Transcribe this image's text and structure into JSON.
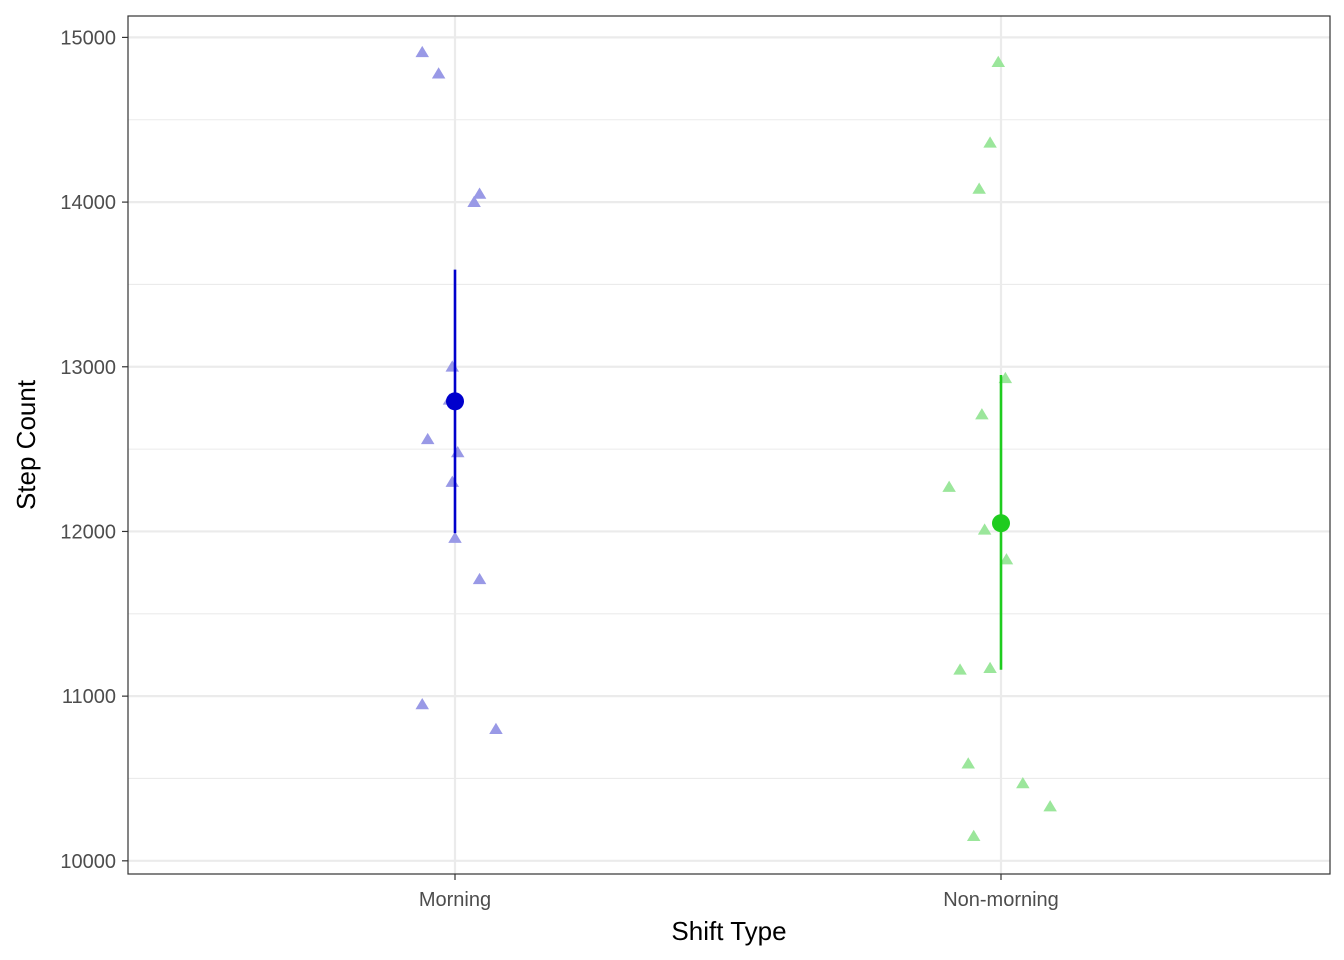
{
  "chart_data": {
    "type": "scatter",
    "xlabel": "Shift Type",
    "ylabel": "Step Count",
    "categories": [
      "Morning",
      "Non-morning"
    ],
    "ylim": [
      9920,
      15130
    ],
    "yticks": [
      10000,
      11000,
      12000,
      13000,
      14000,
      15000
    ],
    "grid": true,
    "legend": "none",
    "series": [
      {
        "category": "Morning",
        "color": "#0000cd",
        "point_color": "#9999e6",
        "mean": 12790,
        "interval": [
          11990,
          13590
        ],
        "points": [
          {
            "x_offset": -0.06,
            "y": 14910
          },
          {
            "x_offset": -0.03,
            "y": 14780
          },
          {
            "x_offset": 0.045,
            "y": 14050
          },
          {
            "x_offset": 0.035,
            "y": 14000
          },
          {
            "x_offset": -0.005,
            "y": 13000
          },
          {
            "x_offset": -0.01,
            "y": 12800
          },
          {
            "x_offset": -0.05,
            "y": 12560
          },
          {
            "x_offset": 0.005,
            "y": 12480
          },
          {
            "x_offset": -0.005,
            "y": 12300
          },
          {
            "x_offset": 0.0,
            "y": 11960
          },
          {
            "x_offset": 0.045,
            "y": 11710
          },
          {
            "x_offset": -0.06,
            "y": 10950
          },
          {
            "x_offset": 0.075,
            "y": 10800
          }
        ]
      },
      {
        "category": "Non-morning",
        "color": "#1fcc1f",
        "point_color": "#9be69b",
        "mean": 12050,
        "interval": [
          11160,
          12950
        ],
        "points": [
          {
            "x_offset": -0.005,
            "y": 14850
          },
          {
            "x_offset": -0.02,
            "y": 14360
          },
          {
            "x_offset": -0.04,
            "y": 14080
          },
          {
            "x_offset": 0.008,
            "y": 12930
          },
          {
            "x_offset": -0.035,
            "y": 12710
          },
          {
            "x_offset": -0.095,
            "y": 12270
          },
          {
            "x_offset": -0.03,
            "y": 12010
          },
          {
            "x_offset": 0.01,
            "y": 11830
          },
          {
            "x_offset": -0.075,
            "y": 11160
          },
          {
            "x_offset": -0.02,
            "y": 11170
          },
          {
            "x_offset": -0.06,
            "y": 10590
          },
          {
            "x_offset": 0.04,
            "y": 10470
          },
          {
            "x_offset": 0.09,
            "y": 10330
          },
          {
            "x_offset": -0.05,
            "y": 10150
          }
        ]
      }
    ]
  }
}
